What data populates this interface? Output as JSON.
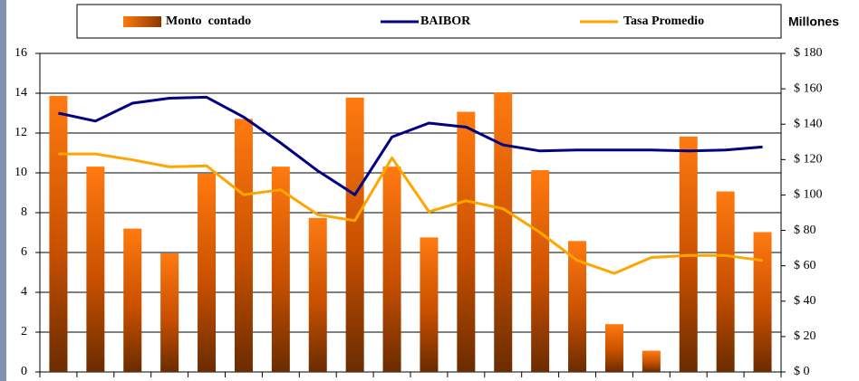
{
  "chart_data": {
    "type": "bar_line",
    "y2_label": "Millones",
    "categories": [
      null,
      null,
      null,
      null,
      null,
      null,
      null,
      null,
      null,
      null,
      null,
      null,
      null,
      null,
      null,
      null,
      null,
      null,
      null,
      null
    ],
    "series": [
      {
        "name": "Monto  contado",
        "type": "bar",
        "axis": "y2",
        "color": "#ff6a00",
        "values": [
          156,
          116,
          81,
          67,
          112,
          143,
          116,
          87,
          155,
          116,
          76,
          147,
          158,
          114,
          74,
          27,
          12,
          133,
          102,
          79
        ]
      },
      {
        "name": "BAIBOR",
        "type": "line",
        "color": "#000080",
        "values": [
          13.0,
          12.6,
          13.5,
          13.75,
          13.8,
          12.8,
          11.5,
          10.1,
          8.9,
          11.8,
          12.5,
          12.3,
          11.4,
          11.1,
          11.15,
          11.15,
          11.15,
          11.1,
          11.15,
          11.3
        ]
      },
      {
        "name": "Tasa Promedio",
        "type": "line",
        "color": "#ffa500",
        "values": [
          10.95,
          10.95,
          10.65,
          10.3,
          10.35,
          8.9,
          9.15,
          7.9,
          7.6,
          10.75,
          8.05,
          8.6,
          8.2,
          7.0,
          5.6,
          4.95,
          5.75,
          5.85,
          5.85,
          5.6
        ]
      }
    ],
    "ylim": [
      0,
      16
    ],
    "yticks": [
      0,
      2,
      4,
      6,
      8,
      10,
      12,
      14,
      16
    ],
    "y2lim": [
      0,
      180
    ],
    "y2ticks": [
      {
        "value": 0,
        "label": "$ 0"
      },
      {
        "value": 20,
        "label": "$ 20"
      },
      {
        "value": 40,
        "label": "$ 40"
      },
      {
        "value": 60,
        "label": "$ 60"
      },
      {
        "value": 80,
        "label": "$ 80"
      },
      {
        "value": 100,
        "label": "$ 100"
      },
      {
        "value": 120,
        "label": "$ 120"
      },
      {
        "value": 140,
        "label": "$ 140"
      },
      {
        "value": 160,
        "label": "$ 160"
      },
      {
        "value": 180,
        "label": "$ 180"
      }
    ],
    "grid": true
  }
}
